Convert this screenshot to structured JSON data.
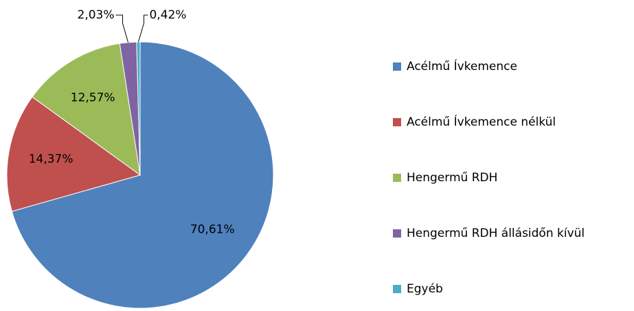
{
  "chart_data": {
    "type": "pie",
    "categories": [
      "Acélmű Ívkemence",
      "Acélmű Ívkemence nélkül",
      "Hengermű RDH",
      "Hengermű RDH állásidőn kívül",
      "Egyéb"
    ],
    "values": [
      70.61,
      14.37,
      12.57,
      2.03,
      0.42
    ],
    "value_labels": [
      "70,61%",
      "14,37%",
      "12,57%",
      "2,03%",
      "0,42%"
    ],
    "colors": [
      "#4f81bd",
      "#c0504d",
      "#9bbb59",
      "#8064a2",
      "#4bacc6"
    ],
    "legend": "right"
  }
}
